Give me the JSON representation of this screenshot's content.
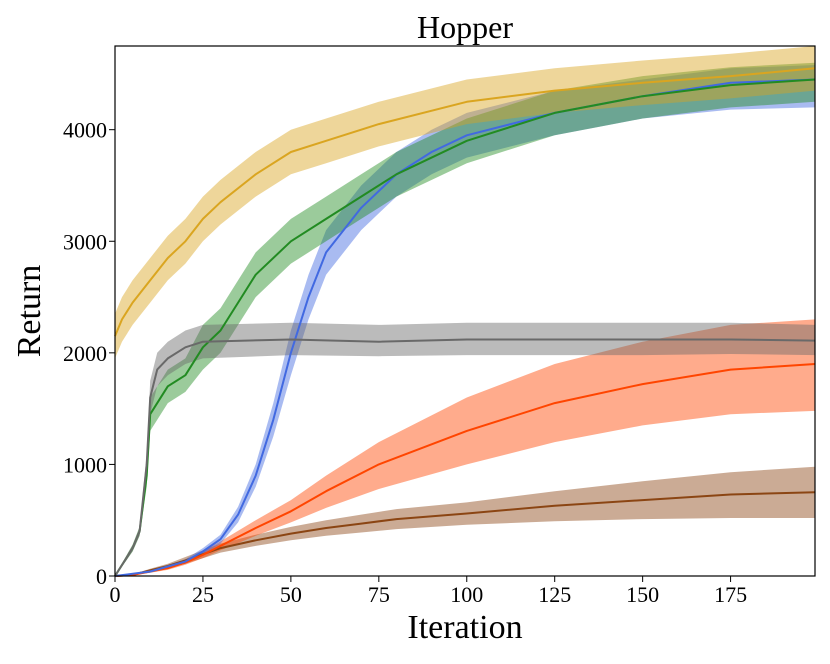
{
  "chart_data": {
    "type": "line",
    "title": "Hopper",
    "xlabel": "Iteration",
    "ylabel": "Return",
    "xlim": [
      0,
      199
    ],
    "ylim": [
      0,
      4750
    ],
    "x_ticks": [
      0,
      25,
      50,
      75,
      100,
      125,
      150,
      175
    ],
    "y_ticks": [
      0,
      1000,
      2000,
      3000,
      4000
    ],
    "grid": false,
    "legend": "none",
    "series": [
      {
        "color": "#8B4513",
        "x": [
          0,
          5,
          10,
          15,
          20,
          30,
          40,
          50,
          60,
          70,
          80,
          100,
          125,
          150,
          175,
          199
        ],
        "values": [
          0,
          10,
          50,
          90,
          140,
          250,
          320,
          380,
          430,
          470,
          510,
          560,
          630,
          680,
          730,
          750
        ],
        "lower": [
          0,
          5,
          35,
          70,
          110,
          210,
          270,
          320,
          360,
          390,
          420,
          460,
          490,
          510,
          520,
          520
        ],
        "upper": [
          0,
          15,
          65,
          110,
          170,
          290,
          370,
          440,
          500,
          550,
          600,
          660,
          760,
          850,
          930,
          980
        ]
      },
      {
        "color": "#FF4500",
        "x": [
          0,
          5,
          10,
          15,
          20,
          25,
          30,
          40,
          50,
          60,
          75,
          100,
          125,
          150,
          175,
          199
        ],
        "values": [
          0,
          10,
          40,
          70,
          120,
          190,
          270,
          430,
          580,
          760,
          1000,
          1300,
          1550,
          1720,
          1850,
          1900
        ],
        "lower": [
          0,
          5,
          30,
          55,
          100,
          160,
          230,
          360,
          480,
          610,
          780,
          1000,
          1200,
          1350,
          1450,
          1480
        ],
        "upper": [
          0,
          15,
          50,
          85,
          140,
          220,
          310,
          500,
          680,
          900,
          1200,
          1600,
          1900,
          2100,
          2250,
          2300
        ]
      },
      {
        "color": "#4169E1",
        "x": [
          0,
          10,
          20,
          25,
          30,
          35,
          40,
          45,
          50,
          55,
          60,
          70,
          80,
          90,
          100,
          125,
          150,
          175,
          199
        ],
        "values": [
          0,
          40,
          130,
          220,
          330,
          550,
          900,
          1400,
          2000,
          2500,
          2900,
          3300,
          3600,
          3800,
          3950,
          4150,
          4300,
          4420,
          4450
        ],
        "lower": [
          0,
          30,
          110,
          190,
          290,
          480,
          800,
          1250,
          1800,
          2300,
          2700,
          3100,
          3400,
          3600,
          3750,
          3950,
          4100,
          4180,
          4200
        ],
        "upper": [
          0,
          50,
          150,
          250,
          370,
          620,
          1000,
          1550,
          2200,
          2700,
          3100,
          3500,
          3800,
          4000,
          4150,
          4350,
          4450,
          4550,
          4580
        ]
      },
      {
        "color": "#228B22",
        "x": [
          0,
          3,
          5,
          7,
          9,
          10,
          15,
          20,
          25,
          30,
          35,
          40,
          50,
          60,
          70,
          80,
          100,
          125,
          150,
          175,
          199
        ],
        "values": [
          0,
          150,
          250,
          400,
          900,
          1450,
          1700,
          1800,
          2050,
          2200,
          2450,
          2700,
          3000,
          3200,
          3400,
          3600,
          3900,
          4150,
          4300,
          4400,
          4450
        ],
        "lower": [
          0,
          130,
          220,
          360,
          800,
          1300,
          1550,
          1650,
          1850,
          2000,
          2250,
          2500,
          2800,
          3000,
          3200,
          3400,
          3700,
          3950,
          4100,
          4200,
          4250
        ],
        "upper": [
          0,
          170,
          280,
          440,
          1000,
          1600,
          1850,
          1950,
          2250,
          2400,
          2650,
          2900,
          3200,
          3400,
          3600,
          3800,
          4100,
          4350,
          4480,
          4560,
          4600
        ]
      },
      {
        "color": "#696969",
        "x": [
          0,
          3,
          5,
          7,
          9,
          10,
          12,
          15,
          20,
          25,
          50,
          75,
          100,
          125,
          150,
          175,
          199
        ],
        "values": [
          0,
          150,
          250,
          400,
          1000,
          1600,
          1850,
          1950,
          2050,
          2100,
          2120,
          2100,
          2120,
          2120,
          2120,
          2120,
          2110
        ],
        "lower": [
          0,
          130,
          220,
          360,
          900,
          1450,
          1700,
          1800,
          1900,
          1950,
          1980,
          1970,
          1980,
          1980,
          1980,
          1990,
          1980
        ],
        "upper": [
          0,
          170,
          280,
          440,
          1100,
          1750,
          2000,
          2100,
          2200,
          2250,
          2270,
          2250,
          2270,
          2270,
          2270,
          2270,
          2250
        ]
      },
      {
        "color": "#DAA520",
        "x": [
          0,
          2,
          5,
          10,
          15,
          20,
          25,
          30,
          40,
          50,
          60,
          75,
          100,
          125,
          150,
          175,
          199
        ],
        "values": [
          2150,
          2300,
          2450,
          2650,
          2850,
          3000,
          3200,
          3350,
          3600,
          3800,
          3900,
          4050,
          4250,
          4350,
          4420,
          4480,
          4550
        ],
        "lower": [
          1950,
          2100,
          2250,
          2450,
          2650,
          2800,
          3000,
          3150,
          3400,
          3600,
          3700,
          3850,
          4050,
          4150,
          4220,
          4280,
          4350
        ],
        "upper": [
          2350,
          2500,
          2650,
          2850,
          3050,
          3200,
          3400,
          3550,
          3800,
          4000,
          4100,
          4250,
          4450,
          4550,
          4620,
          4680,
          4750
        ]
      }
    ]
  }
}
